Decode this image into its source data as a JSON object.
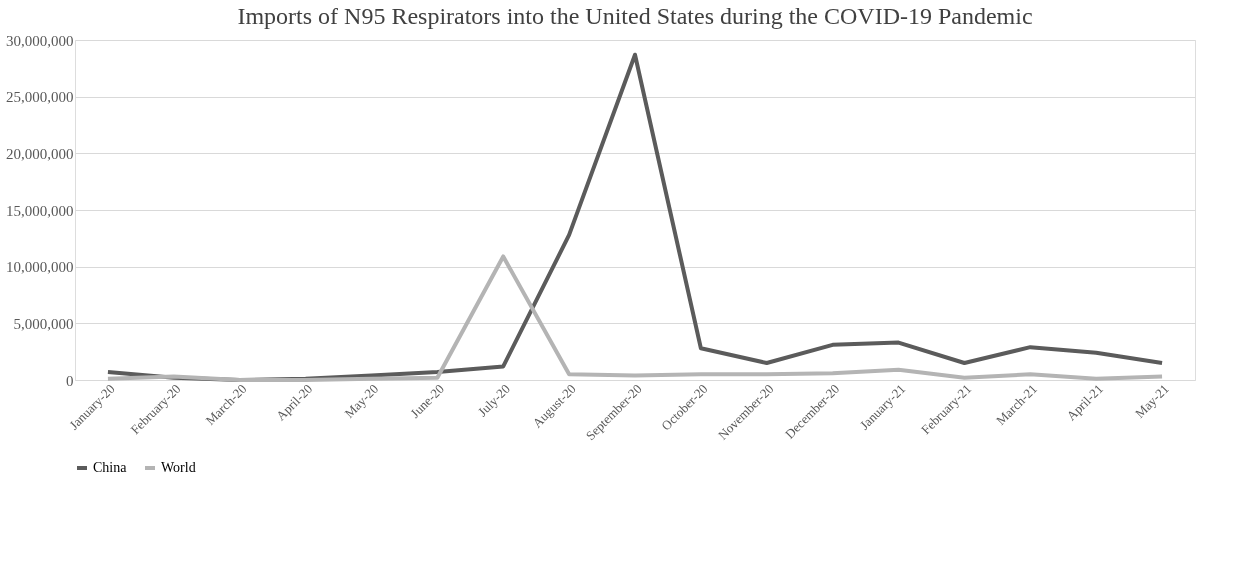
{
  "chart_data": {
    "type": "line",
    "title": "Imports of N95 Respirators into the United States during the COVID-19 Pandemic",
    "categories": [
      "January-20",
      "February-20",
      "March-20",
      "April-20",
      "May-20",
      "June-20",
      "July-20",
      "August-20",
      "September-20",
      "October-20",
      "November-20",
      "December-20",
      "January-21",
      "February-21",
      "March-21",
      "April-21",
      "May-21"
    ],
    "series": [
      {
        "name": "China",
        "color": "#5b5b5b",
        "values": [
          700000,
          200000,
          0,
          100000,
          400000,
          700000,
          1200000,
          12800000,
          28700000,
          2800000,
          1500000,
          3100000,
          3300000,
          1500000,
          2900000,
          2400000,
          1500000
        ]
      },
      {
        "name": "World",
        "color": "#b4b4b4",
        "values": [
          100000,
          300000,
          0,
          0,
          100000,
          200000,
          10900000,
          500000,
          400000,
          500000,
          500000,
          600000,
          900000,
          200000,
          500000,
          100000,
          300000
        ]
      }
    ],
    "ylim": [
      0,
      30000000
    ],
    "yticks": [
      0,
      {
        "value": 5000000,
        "label": "5,000,000"
      },
      {
        "value": 10000000,
        "label": "10,000,000"
      },
      {
        "value": 15000000,
        "label": "15,000,000"
      },
      {
        "value": 20000000,
        "label": "20,000,000"
      },
      {
        "value": 25000000,
        "label": "25,000,000"
      },
      {
        "value": 30000000,
        "label": "30,000,000"
      }
    ],
    "grid": "y",
    "legend": "bottom",
    "marker": "none",
    "line_style": "solid"
  }
}
